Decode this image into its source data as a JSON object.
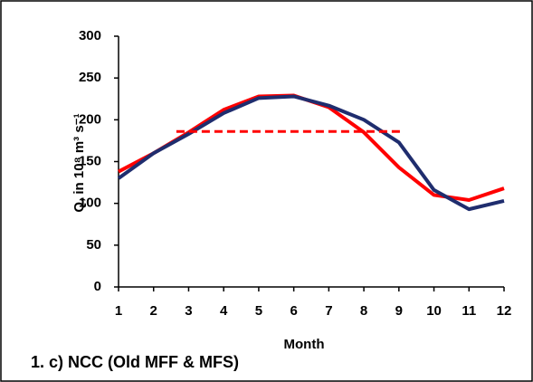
{
  "chart_data": {
    "type": "line",
    "y_label": "Q, in 10⁸ m³ s⁻¹",
    "x_label": "Month",
    "annotation": "1. c) NCC (Old MFF & MFS)",
    "x": [
      1,
      2,
      3,
      4,
      5,
      6,
      7,
      8,
      9,
      10,
      11,
      12
    ],
    "xlim": [
      1,
      12
    ],
    "xticks": [
      1,
      2,
      3,
      4,
      5,
      6,
      7,
      8,
      9,
      10,
      11,
      12
    ],
    "ylim": [
      0,
      300
    ],
    "yticks": [
      0,
      50,
      100,
      150,
      200,
      250,
      300
    ],
    "series": [
      {
        "color": "#ff0000",
        "values": [
          138,
          160,
          185,
          212,
          228,
          229,
          215,
          185,
          143,
          110,
          104,
          118
        ]
      },
      {
        "color": "#1f2d6e",
        "values": [
          130,
          160,
          183,
          208,
          226,
          228,
          217,
          200,
          173,
          116,
          93,
          103
        ]
      }
    ],
    "reference_line": {
      "y": 186,
      "x": [
        2.65,
        9.06
      ],
      "color": "#ff0000",
      "dashed": true
    }
  }
}
